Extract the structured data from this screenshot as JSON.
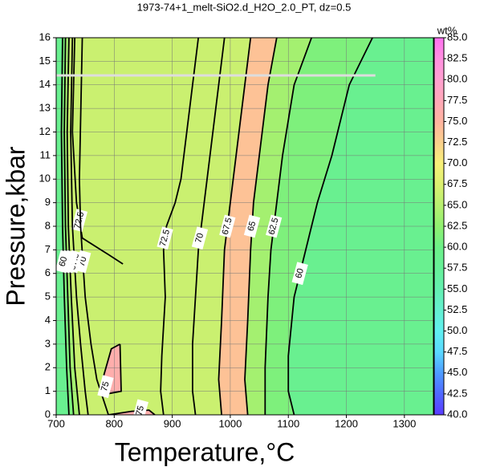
{
  "chart_data": {
    "type": "contour",
    "title": "1973-74+1_melt-SiO2.d_H2O_2.0_PT, dz=0.5",
    "x_label": "Temperature,°C",
    "y_label": "Pressure,kbar",
    "colorbar_label": "wt%",
    "xlim": [
      700,
      1350
    ],
    "xticks": [
      700,
      800,
      900,
      1000,
      1100,
      1200,
      1300
    ],
    "ylim": [
      0,
      16
    ],
    "yticks": [
      0,
      1,
      2,
      3,
      4,
      5,
      6,
      7,
      8,
      9,
      10,
      11,
      12,
      13,
      14,
      15,
      16
    ],
    "grid": true,
    "clim": [
      40,
      85
    ],
    "cticks": [
      {
        "value": 40,
        "label": "40.0"
      },
      {
        "value": 42.5,
        "label": "42.5"
      },
      {
        "value": 45,
        "label": "45.0"
      },
      {
        "value": 47.5,
        "label": "47.5"
      },
      {
        "value": 50,
        "label": "50.0"
      },
      {
        "value": 52.5,
        "label": "52.5"
      },
      {
        "value": 55,
        "label": "55.0"
      },
      {
        "value": 57.5,
        "label": "57.5"
      },
      {
        "value": 60,
        "label": "60.0"
      },
      {
        "value": 62.5,
        "label": "62.5"
      },
      {
        "value": 65,
        "label": "65.0"
      },
      {
        "value": 67.5,
        "label": "67.5"
      },
      {
        "value": 70,
        "label": "70.0"
      },
      {
        "value": 72.5,
        "label": "72.5"
      },
      {
        "value": 75,
        "label": "75.0"
      },
      {
        "value": 77.5,
        "label": "77.5"
      },
      {
        "value": 80,
        "label": "80.0"
      },
      {
        "value": 82.5,
        "label": "82.5"
      },
      {
        "value": 85,
        "label": "85.0"
      }
    ],
    "colormap": [
      {
        "value": 40,
        "color": "#5a3cff"
      },
      {
        "value": 42.5,
        "color": "#5068ff"
      },
      {
        "value": 45,
        "color": "#4e9cff"
      },
      {
        "value": 47.5,
        "color": "#5ad8ff"
      },
      {
        "value": 50,
        "color": "#60f0f0"
      },
      {
        "value": 52.5,
        "color": "#64f0d0"
      },
      {
        "value": 55,
        "color": "#64f0b0"
      },
      {
        "value": 57.5,
        "color": "#66f098"
      },
      {
        "value": 60,
        "color": "#6cf088"
      },
      {
        "value": 62.5,
        "color": "#90f070"
      },
      {
        "value": 65,
        "color": "#b8f070"
      },
      {
        "value": 67.5,
        "color": "#dcf070"
      },
      {
        "value": 70,
        "color": "#f8f078"
      },
      {
        "value": 72.5,
        "color": "#fad08c"
      },
      {
        "value": 75,
        "color": "#ffb4a0"
      },
      {
        "value": 77.5,
        "color": "#ffa8b8"
      },
      {
        "value": 80,
        "color": "#ffa0d0"
      },
      {
        "value": 82.5,
        "color": "#ff90e0"
      },
      {
        "value": 85,
        "color": "#ff70f0"
      }
    ],
    "reference_line": {
      "y": 14.4,
      "x": [
        700,
        1250
      ]
    },
    "contours": [
      {
        "level": 72.5,
        "x": [
          885,
          880,
          882,
          888,
          885,
          890,
          905,
          915,
          925,
          935,
          945
        ],
        "y": [
          0,
          1,
          2.5,
          5,
          7,
          8,
          9,
          10,
          12,
          14,
          16
        ]
      },
      {
        "level": 70,
        "x": [
          940,
          935,
          935,
          945,
          950,
          960,
          975,
          990
        ],
        "y": [
          0,
          1,
          3,
          7,
          8,
          10,
          13,
          16
        ]
      },
      {
        "level": 67.5,
        "x": [
          985,
          980,
          985,
          990,
          1000,
          1010,
          1025,
          1035
        ],
        "y": [
          0,
          1.5,
          4,
          7,
          9,
          11,
          14,
          16
        ]
      },
      {
        "level": 65,
        "x": [
          1030,
          1025,
          1030,
          1035,
          1040,
          1050,
          1065,
          1080
        ],
        "y": [
          0,
          1.5,
          4,
          7,
          9,
          11,
          14,
          16
        ]
      },
      {
        "level": 62.5,
        "x": [
          1060,
          1060,
          1065,
          1070,
          1080,
          1090,
          1110,
          1140
        ],
        "y": [
          0,
          2,
          5,
          7,
          9,
          11,
          14,
          16
        ]
      },
      {
        "level": 60,
        "x": [
          1110,
          1100,
          1100,
          1110,
          1130,
          1150,
          1175,
          1205,
          1245
        ],
        "y": [
          0,
          1,
          2.5,
          5,
          7,
          9,
          11,
          14,
          16
        ]
      },
      {
        "level": 72.5,
        "x": [
          732,
          728,
          735,
          745,
          790,
          815
        ],
        "y": [
          16,
          12,
          9,
          7.5,
          6.8,
          6.4
        ]
      },
      {
        "level": 70,
        "x": [
          745,
          740,
          742,
          750,
          760,
          770,
          790
        ],
        "y": [
          16,
          10,
          8,
          5,
          3,
          1.5,
          0
        ]
      },
      {
        "level": 67.5,
        "x": [
          728,
          725,
          728,
          735,
          742,
          750,
          755
        ],
        "y": [
          16,
          12,
          8,
          5,
          3,
          1,
          0
        ]
      },
      {
        "level": 65,
        "x": [
          722,
          719,
          721,
          726,
          732,
          740
        ],
        "y": [
          16,
          12,
          8,
          5,
          2,
          0
        ]
      },
      {
        "level": 62.5,
        "x": [
          716,
          714,
          716,
          720,
          724,
          730
        ],
        "y": [
          16,
          12,
          8,
          5,
          2,
          0
        ]
      },
      {
        "level": 60,
        "x": [
          711,
          709,
          711,
          714,
          718,
          722
        ],
        "y": [
          16,
          12,
          8,
          5,
          2,
          0
        ]
      },
      {
        "level": 75,
        "x": [
          810,
          812,
          790,
          780,
          795,
          810
        ],
        "y": [
          3,
          1,
          0.9,
          1.5,
          2.8,
          3
        ]
      },
      {
        "level": 75,
        "x": [
          790,
          830,
          860,
          870
        ],
        "y": [
          0,
          0.15,
          0.2,
          0
        ]
      }
    ]
  }
}
